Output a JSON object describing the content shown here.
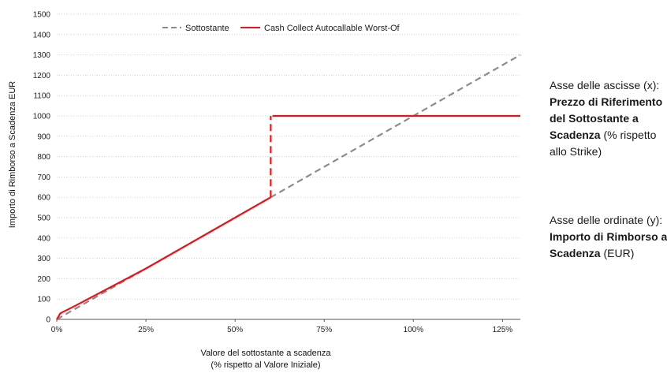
{
  "chart_data": {
    "type": "line",
    "x": [
      0,
      5,
      25,
      50,
      60,
      65,
      75,
      100,
      125,
      130
    ],
    "x_unit": "%",
    "xlim": [
      0,
      130
    ],
    "ylim": [
      0,
      1500
    ],
    "x_ticks": [
      "0%",
      "25%",
      "50%",
      "75%",
      "100%",
      "125%"
    ],
    "x_tick_values": [
      0,
      25,
      50,
      75,
      100,
      125
    ],
    "y_ticks": [
      0,
      100,
      200,
      300,
      400,
      500,
      600,
      700,
      800,
      900,
      1000,
      1100,
      1200,
      1300,
      1400,
      1500
    ],
    "xlabel_line1": "Valore del sottostante a scadenza",
    "xlabel_line2": "(% rispetto al Valore Iniziale)",
    "ylabel": "Importo di Rimborso a Scadenza EUR",
    "grid": "horizontal",
    "legend_position": "top-center",
    "series": [
      {
        "name": "Sottostante",
        "style": "dashed",
        "color": "#8c8c8c",
        "points": [
          [
            0,
            0
          ],
          [
            130,
            1300
          ]
        ]
      },
      {
        "name": "Cash Collect Autocallable Worst-Of",
        "style": "solid",
        "color": "#e8141b",
        "segments": [
          {
            "style": "solid",
            "points": [
              [
                0,
                0
              ],
              [
                1,
                30
              ],
              [
                5,
                65
              ],
              [
                25,
                250
              ],
              [
                60,
                600
              ]
            ]
          },
          {
            "style": "dashed",
            "points": [
              [
                60,
                600
              ],
              [
                60,
                1000
              ]
            ]
          },
          {
            "style": "solid",
            "points": [
              [
                60.5,
                1000
              ],
              [
                130,
                1000
              ]
            ]
          }
        ]
      }
    ]
  },
  "notes": {
    "x_axis": {
      "prefix": "Asse delle ascisse (x): ",
      "bold": "Prezzo di Riferimento del Sottostante a Scadenza",
      "suffix": " (% rispetto allo Strike)"
    },
    "y_axis": {
      "prefix": "Asse delle ordinate (y): ",
      "bold": "Importo di Rimborso a Scadenza",
      "suffix": " (EUR)"
    }
  }
}
